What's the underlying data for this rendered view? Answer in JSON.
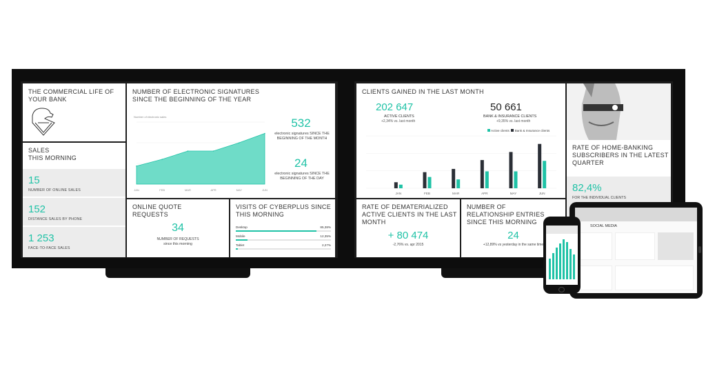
{
  "left_screen": {
    "brand": {
      "title": "THE COMMERCIAL LIFE OF YOUR BANK"
    },
    "sales": {
      "title": "SALES\nTHIS MORNING",
      "items": [
        {
          "value": "15",
          "label": "NUMBER OF ONLINE SALES"
        },
        {
          "value": "152",
          "label": "DISTANCE SALES BY PHONE"
        },
        {
          "value": "1 253",
          "label": "FACE-TO-FACE SALES"
        }
      ]
    },
    "signatures": {
      "title": "NUMBER OF ELECTRONIC SIGNATURES SINCE THE BEGINNING OF THE YEAR",
      "chart_caption": "Number of electronic sales",
      "month_value": "532",
      "month_label": "electronic signatures SINCE THE BEGINNING OF THE MONTH",
      "day_value": "24",
      "day_label": "electronic signatures SINCE THE BEGINNING OF THE DAY"
    },
    "quotes": {
      "title": "ONLINE QUOTE REQUESTS",
      "value": "34",
      "label": "NUMBER OF REQUESTS",
      "sub": "since this morning"
    },
    "visits": {
      "title": "VISITS OF CYBERPLUS SINCE THIS MORNING",
      "rows": [
        {
          "name": "Desktop",
          "pct": "85,38%",
          "fill": 0.85
        },
        {
          "name": "Mobile",
          "pct": "12,35%",
          "fill": 0.12
        },
        {
          "name": "Tablet",
          "pct": "2,27%",
          "fill": 0.02
        }
      ]
    }
  },
  "right_screen": {
    "clients": {
      "title": "CLIENTS GAINED IN THE LAST MONTH",
      "active_value": "202 647",
      "active_label": "ACTIVE CLIENTS",
      "active_sub": "+2,34% vs. last month",
      "bank_value": "50 661",
      "bank_label": "BANK & INSURANCE CLIENTS",
      "bank_sub": "+9,35% vs. last month",
      "legend": [
        "Active clients",
        "Bank & Insurance clients"
      ]
    },
    "homebanking": {
      "title": "RATE OF HOME-BANKING SUBSCRIBERS IN THE LATEST QUARTER",
      "value": "82,4%",
      "label": "FOR THE INDIVIDUAL CLIENTS"
    },
    "dematerialized": {
      "title": "RATE OF DEMATERIALIZED ACTIVE CLIENTS IN THE LAST MONTH",
      "value": "+ 80 474",
      "sub": "-2,76% vs. apr 2015"
    },
    "relationship": {
      "title": "NUMBER OF RELATIONSHIP ENTRIES SINCE THIS MORNING",
      "value": "24",
      "sub": "+12,89% vs yesterday in the same time"
    }
  },
  "tablet": {
    "section": "SOCIAL MEDIA"
  },
  "colors": {
    "accent": "#1fc2a6",
    "dark_bar": "#2b2f36",
    "bezel": "#0d0d0d"
  },
  "chart_data": [
    {
      "type": "area",
      "x": [
        "JAN",
        "FEB",
        "MAR",
        "APR",
        "MAY",
        "JUN"
      ],
      "values": [
        35,
        48,
        64,
        64,
        80,
        98
      ],
      "ylim": [
        0,
        120
      ],
      "title": "Number of electronic sales"
    },
    {
      "type": "bar",
      "categories": [
        "JAN",
        "FEB",
        "MAR",
        "APR",
        "MAY",
        "JUN"
      ],
      "series": [
        {
          "name": "Active clients",
          "values": [
            9,
            28,
            22,
            42,
            42,
            68
          ]
        },
        {
          "name": "Bank & Insurance clients",
          "values": [
            15,
            40,
            48,
            70,
            90,
            110
          ]
        }
      ],
      "ylim": [
        0,
        130
      ]
    }
  ]
}
